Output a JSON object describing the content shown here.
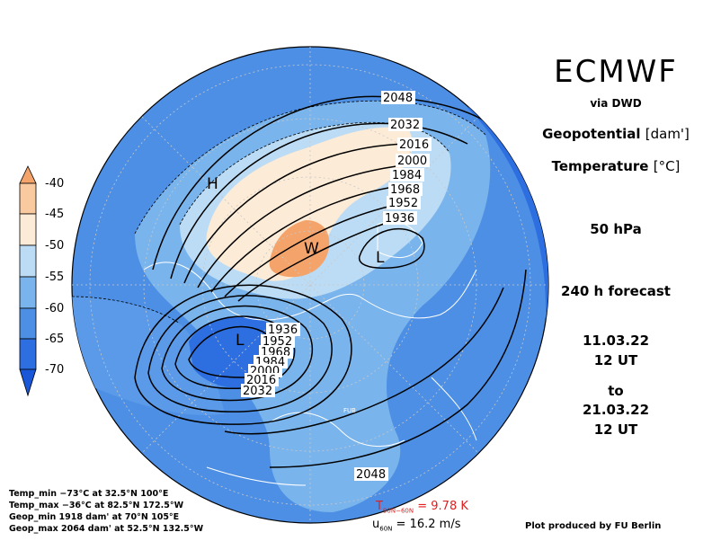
{
  "header": {
    "title": "ECMWF",
    "source": "via DWD",
    "var1_name": "Geopotential",
    "var1_unit": "[dam']",
    "var2_name": "Temperature",
    "var2_unit": "[°C]",
    "level": "50 hPa",
    "forecast": "240 h forecast",
    "init_date": "11.03.22",
    "init_time": "12 UT",
    "to_label": "to",
    "valid_date": "21.03.22",
    "valid_time": "12 UT"
  },
  "colorbar": {
    "labels": [
      "-40",
      "-45",
      "-50",
      "-55",
      "-60",
      "-65",
      "-70"
    ],
    "colors": [
      "#f4a46a",
      "#f9c9a0",
      "#fcebd6",
      "#bcdcf5",
      "#7ab4ec",
      "#4d8fe4",
      "#2d6ee0",
      "#1a56d8"
    ]
  },
  "map": {
    "pressure_markers": [
      "H",
      "L",
      "L",
      "W",
      "FUB"
    ],
    "contour_labels": [
      "2048",
      "2032",
      "2016",
      "2000",
      "1984",
      "1968",
      "1952",
      "1936",
      "1936",
      "1952",
      "1968",
      "1984",
      "2000",
      "2016",
      "2032",
      "2048"
    ]
  },
  "stats": {
    "temp_min": "Temp_min −73°C at 32.5°N 100°E",
    "temp_max": "Temp_max −36°C at 82.5°N 172.5°W",
    "geop_min": "Geop_min 1918 dam' at 70°N 105°E",
    "geop_max": "Geop_max 2064 dam' at 52.5°N 132.5°W"
  },
  "footer": {
    "tdiff_label": "T",
    "tdiff_sub": "90N−60N",
    "tdiff_value": "= 9.78 K",
    "u_label": "u",
    "u_sub": "60N",
    "u_value": "= 16.2 m/s",
    "credit": "Plot produced by FU Berlin"
  }
}
